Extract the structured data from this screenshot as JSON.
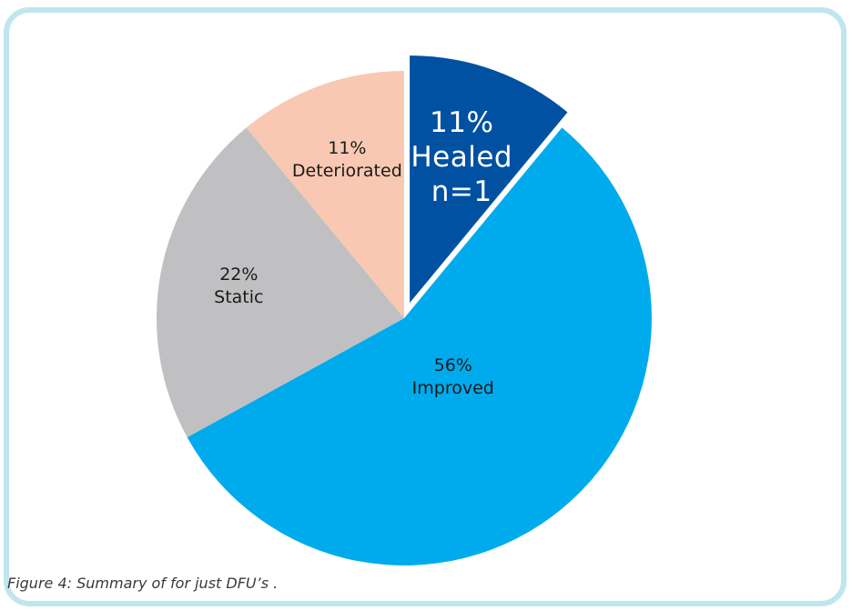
{
  "chart_data": {
    "type": "pie",
    "slices": [
      {
        "name": "Healed",
        "percent": 11,
        "label_pct": "11%",
        "label_name": "Healed",
        "label_extra": "n=1",
        "color": "#0051a2",
        "exploded": true
      },
      {
        "name": "Improved",
        "percent": 56,
        "label_pct": "56%",
        "label_name": "Improved",
        "color": "#00abed",
        "exploded": false
      },
      {
        "name": "Static",
        "percent": 22,
        "label_pct": "22%",
        "label_name": "Static",
        "color": "#c0c0c2",
        "exploded": false
      },
      {
        "name": "Deteriorated",
        "percent": 11,
        "label_pct": "11%",
        "label_name": "Deteriorated",
        "color": "#f9c8b2",
        "exploded": false
      }
    ],
    "start": "12 o'clock",
    "direction": "clockwise"
  },
  "caption": "Figure 4: Summary of for just DFU’s ."
}
